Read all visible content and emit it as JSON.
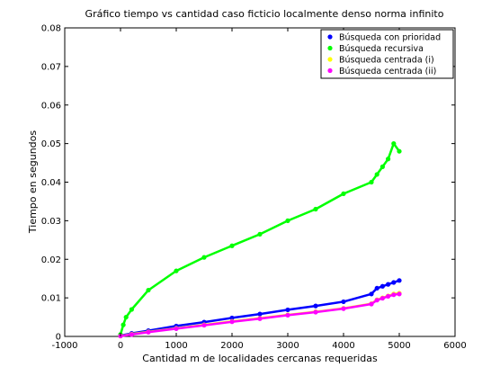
{
  "chart_data": {
    "type": "scatter",
    "title": "Gráfico tiempo vs cantidad caso ficticio localmente denso norma infinito",
    "xlabel": "Cantidad m de localidades cercanas requeridas",
    "ylabel": "Tiempo en segundos",
    "xlim": [
      -1000,
      6000
    ],
    "ylim": [
      0,
      0.08
    ],
    "xticks": [
      "-1000",
      "0",
      "1000",
      "2000",
      "3000",
      "4000",
      "5000",
      "6000"
    ],
    "yticks": [
      "0",
      "0.01",
      "0.02",
      "0.03",
      "0.04",
      "0.05",
      "0.06",
      "0.07",
      "0.08"
    ],
    "grid": false,
    "legend_position": "top-right",
    "series": [
      {
        "name": "Búsqueda con prioridad",
        "color": "#0000ff",
        "x": [
          0,
          200,
          500,
          1000,
          1500,
          2000,
          2500,
          3000,
          3500,
          4000,
          4500,
          4600,
          4700,
          4800,
          4900,
          5000
        ],
        "y": [
          0.0002,
          0.0008,
          0.0015,
          0.0027,
          0.0037,
          0.0048,
          0.0058,
          0.0069,
          0.0079,
          0.009,
          0.011,
          0.0125,
          0.013,
          0.0135,
          0.014,
          0.0145
        ]
      },
      {
        "name": "Búsqueda recursiva",
        "color": "#00ff00",
        "x": [
          0,
          50,
          100,
          200,
          500,
          1000,
          1500,
          2000,
          2500,
          3000,
          3500,
          4000,
          4500,
          4600,
          4700,
          4800,
          4900,
          5000
        ],
        "y": [
          0.0005,
          0.003,
          0.005,
          0.007,
          0.012,
          0.017,
          0.0205,
          0.0235,
          0.0265,
          0.03,
          0.033,
          0.037,
          0.04,
          0.042,
          0.044,
          0.046,
          0.05,
          0.048
        ]
      },
      {
        "name": "Búsqueda centrada (i)",
        "color": "#ffff00",
        "x": [
          0,
          200,
          500,
          1000,
          1500,
          2000,
          2500,
          3000,
          3500,
          4000,
          4500,
          4600,
          4700,
          4800,
          4900,
          5000
        ],
        "y": [
          0.0001,
          0.0006,
          0.0012,
          0.0021,
          0.003,
          0.0039,
          0.0047,
          0.0056,
          0.0064,
          0.0073,
          0.0085,
          0.0095,
          0.01,
          0.0105,
          0.011,
          0.0112
        ]
      },
      {
        "name": "Búsqueda centrada (ii)",
        "color": "#ff00ff",
        "x": [
          0,
          200,
          500,
          1000,
          1500,
          2000,
          2500,
          3000,
          3500,
          4000,
          4500,
          4600,
          4700,
          4800,
          4900,
          5000
        ],
        "y": [
          0.0001,
          0.0005,
          0.0011,
          0.002,
          0.0029,
          0.0038,
          0.0046,
          0.0055,
          0.0063,
          0.0072,
          0.0084,
          0.0094,
          0.0099,
          0.0104,
          0.0108,
          0.011
        ]
      }
    ]
  }
}
